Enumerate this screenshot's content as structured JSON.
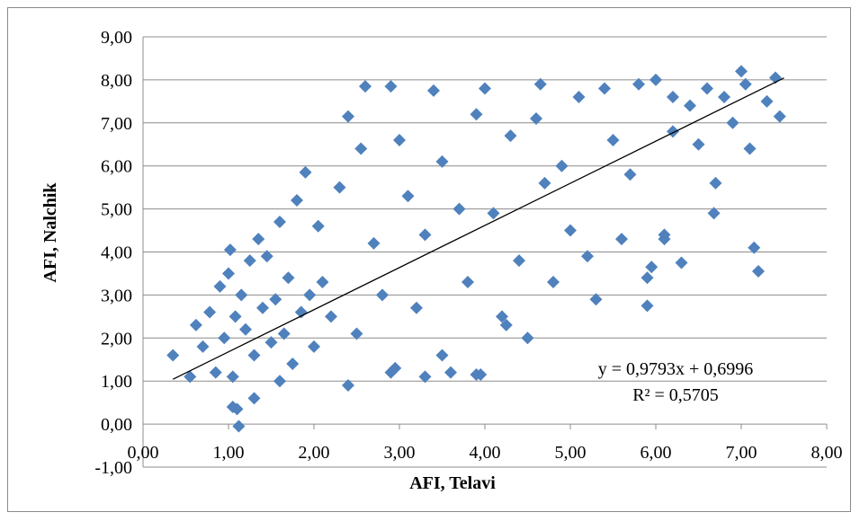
{
  "chart_data": {
    "type": "scatter",
    "title": "",
    "xlabel": "AFI, Telavi",
    "ylabel": "AFI, Nalchik",
    "xlim": [
      0,
      8
    ],
    "ylim": [
      -1,
      9
    ],
    "x_ticks": [
      "0,00",
      "1,00",
      "2,00",
      "3,00",
      "4,00",
      "5,00",
      "6,00",
      "7,00",
      "8,00"
    ],
    "y_ticks": [
      "-1,00",
      "0,00",
      "1,00",
      "2,00",
      "3,00",
      "4,00",
      "5,00",
      "6,00",
      "7,00",
      "8,00",
      "9,00"
    ],
    "grid": "horizontal",
    "marker": "diamond",
    "marker_color": "#4f81bd",
    "trendline": {
      "slope": 0.9793,
      "intercept": 0.6996,
      "x_range": [
        0.35,
        7.5
      ],
      "color": "#000000",
      "equation": "y = 0,9793x + 0,6996",
      "r_squared_label": "R² = 0,5705"
    },
    "series": [
      {
        "x": [
          0.35,
          0.55,
          0.62,
          0.7,
          0.78,
          0.85,
          0.9,
          0.95,
          1.0,
          1.02,
          1.05,
          1.08,
          1.1,
          1.12,
          1.15,
          1.2,
          1.25,
          1.3,
          1.35,
          1.4,
          1.45,
          1.5,
          1.55,
          1.6,
          1.65,
          1.7,
          1.75,
          1.8,
          1.85,
          1.9,
          1.95,
          2.0,
          2.05,
          2.1,
          2.2,
          2.3,
          2.4,
          2.5,
          2.55,
          2.6,
          2.7,
          2.8,
          2.9,
          2.95,
          3.0,
          3.1,
          3.2,
          3.3,
          3.4,
          3.5,
          3.6,
          3.7,
          3.8,
          3.9,
          3.95,
          4.0,
          4.1,
          4.2,
          4.3,
          4.4,
          4.5,
          4.6,
          4.65,
          4.7,
          4.8,
          4.9,
          5.0,
          5.1,
          5.2,
          5.3,
          5.4,
          5.5,
          5.6,
          5.7,
          5.8,
          5.9,
          5.95,
          6.0,
          6.1,
          6.2,
          6.3,
          6.4,
          6.5,
          6.6,
          6.68,
          6.7,
          6.8,
          6.9,
          7.0,
          7.05,
          7.1,
          7.15,
          7.2,
          7.3,
          7.4,
          7.45,
          1.05,
          1.3,
          1.6,
          2.4,
          2.9,
          3.3,
          3.5,
          3.9,
          4.25,
          5.9,
          6.1,
          6.2
        ],
        "y": [
          1.6,
          1.1,
          2.3,
          1.8,
          2.6,
          1.2,
          3.2,
          2.0,
          3.5,
          4.05,
          1.1,
          2.5,
          0.35,
          -0.05,
          3.0,
          2.2,
          3.8,
          1.6,
          4.3,
          2.7,
          3.9,
          1.9,
          2.9,
          4.7,
          2.1,
          3.4,
          1.4,
          5.2,
          2.6,
          5.85,
          3.0,
          1.8,
          4.6,
          3.3,
          2.5,
          5.5,
          7.15,
          2.1,
          6.4,
          7.85,
          4.2,
          3.0,
          7.85,
          1.3,
          6.6,
          5.3,
          2.7,
          4.4,
          7.75,
          6.1,
          1.2,
          5.0,
          3.3,
          7.2,
          1.15,
          7.8,
          4.9,
          2.5,
          6.7,
          3.8,
          2.0,
          7.1,
          7.9,
          5.6,
          3.3,
          6.0,
          4.5,
          7.6,
          3.9,
          2.9,
          7.8,
          6.6,
          4.3,
          5.8,
          7.9,
          2.75,
          3.65,
          8.0,
          4.4,
          6.8,
          3.75,
          7.4,
          6.5,
          7.8,
          4.9,
          5.6,
          7.6,
          7.0,
          8.2,
          7.9,
          6.4,
          4.1,
          3.55,
          7.5,
          8.05,
          7.15,
          0.4,
          0.6,
          1.0,
          0.9,
          1.2,
          1.1,
          1.6,
          1.15,
          2.3,
          3.4,
          4.3,
          7.6
        ]
      }
    ]
  }
}
